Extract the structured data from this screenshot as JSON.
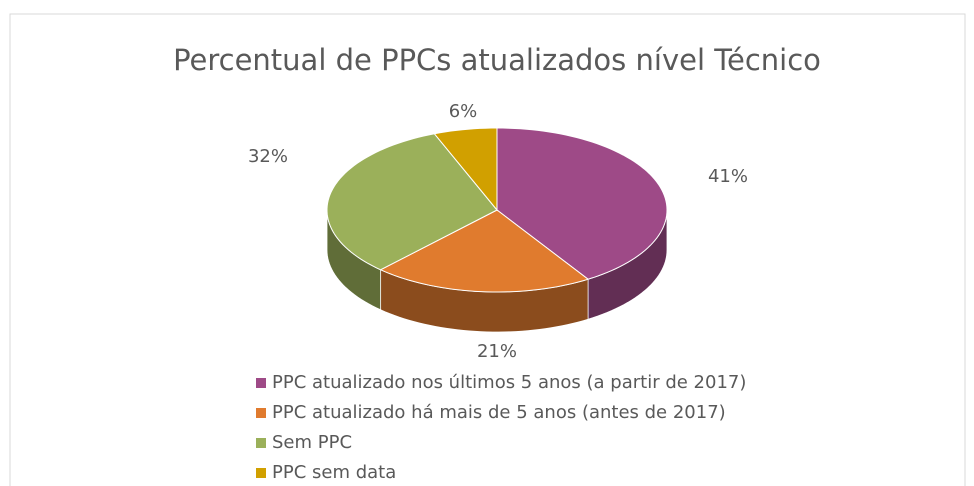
{
  "chart_data": {
    "type": "pie3d",
    "title": "Percentual de PPCs atualizados nível Técnico",
    "categories": [
      "PPC atualizado nos últimos 5 anos (a partir de 2017)",
      "PPC atualizado há mais de 5 anos (antes de 2017)",
      "Sem PPC",
      "PPC sem data"
    ],
    "values": [
      41,
      21,
      32,
      6
    ],
    "value_labels": [
      "41%",
      "21%",
      "32%",
      "6%"
    ],
    "colors": [
      "#9e4a87",
      "#e07b2e",
      "#9bb05a",
      "#d1a000"
    ],
    "legend": "bottom"
  }
}
